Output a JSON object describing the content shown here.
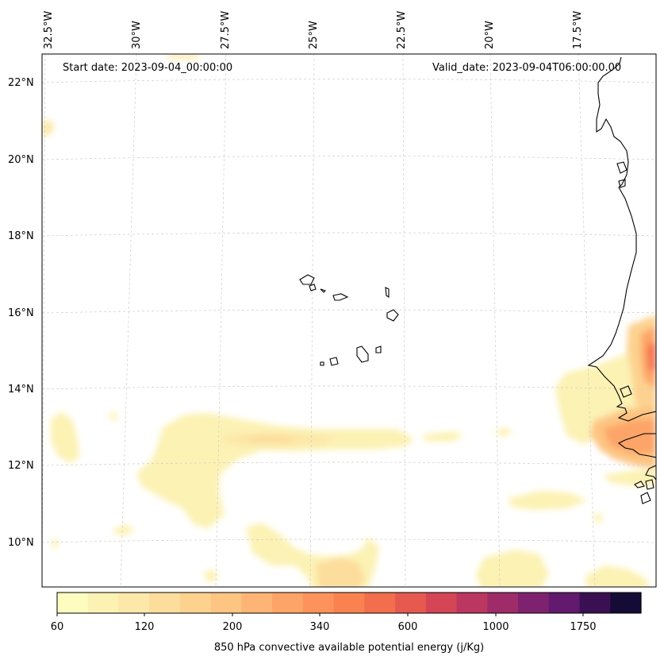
{
  "header": {
    "start_date": "Start date: 2023-09-04_00:00:00",
    "valid_date": "Valid_date: 2023-09-04T06:00:00.00"
  },
  "longitude_labels": [
    "32.5°W",
    "30°W",
    "27.5°W",
    "25°W",
    "22.5°W",
    "20°W",
    "17.5°W"
  ],
  "latitude_labels": [
    "22°N",
    "20°N",
    "18°N",
    "16°N",
    "14°N",
    "12°N",
    "10°N"
  ],
  "colorbar": {
    "label": "850 hPa convective available potential energy (j/Kg)",
    "tick_labels": [
      "60",
      "120",
      "200",
      "340",
      "600",
      "1000",
      "1750"
    ],
    "colors": [
      "#fcfdbf",
      "#fcf2b4",
      "#fce8a9",
      "#fcdd9c",
      "#fdd28f",
      "#fdc482",
      "#fdb474",
      "#fda467",
      "#fd935b",
      "#fa8250",
      "#f26e4c",
      "#e6594f",
      "#d44556",
      "#bb3660",
      "#9d2c69",
      "#7e2270",
      "#611a6e",
      "#3a1053",
      "#140c36"
    ],
    "colormap": "magma_r"
  },
  "map": {
    "extent_lon": [
      -32.7,
      -15.7
    ],
    "extent_lat": [
      8.9,
      22.8
    ],
    "gridlines": true,
    "field": "850 hPa convective available potential energy",
    "units": "j/Kg"
  }
}
